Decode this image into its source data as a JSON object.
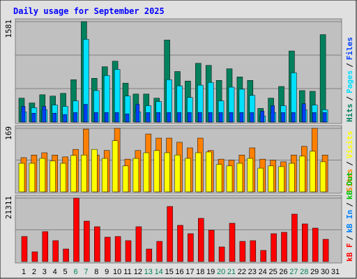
{
  "title": "Daily usage for September 2025",
  "legend_separator": "/",
  "categories": [
    "1",
    "2",
    "3",
    "4",
    "5",
    "6",
    "7",
    "8",
    "9",
    "10",
    "11",
    "12",
    "13",
    "14",
    "15",
    "16",
    "17",
    "18",
    "19",
    "20",
    "21",
    "22",
    "23",
    "24",
    "25",
    "26",
    "27",
    "28",
    "29",
    "30",
    "31"
  ],
  "category_colors": [
    "#000000",
    "#000000",
    "#000000",
    "#000000",
    "#000000",
    "#00805c",
    "#00805c",
    "#000000",
    "#000000",
    "#000000",
    "#000000",
    "#000000",
    "#00805c",
    "#00805c",
    "#000000",
    "#000000",
    "#000000",
    "#000000",
    "#000000",
    "#00805c",
    "#00805c",
    "#000000",
    "#000000",
    "#000000",
    "#000000",
    "#000000",
    "#00805c",
    "#00805c",
    "#000000",
    "#000000",
    "#000000"
  ],
  "chart_data": [
    {
      "type": "bar",
      "ylim": [
        0,
        1581
      ],
      "yticks": [
        1581
      ],
      "grid_divisions": 3,
      "series": [
        {
          "name": "Hits",
          "color": "#00805c",
          "values": [
            376,
            301,
            430,
            409,
            452,
            667,
            1581,
            689,
            871,
            958,
            613,
            441,
            441,
            376,
            1291,
            796,
            646,
            925,
            893,
            656,
            839,
            710,
            656,
            215,
            376,
            560,
            1119,
            495,
            484,
            1377,
            null
          ]
        },
        {
          "name": "Pages",
          "color": "#00e0ff",
          "values": [
            161,
            226,
            194,
            269,
            247,
            334,
            1302,
            495,
            732,
            829,
            409,
            161,
            258,
            323,
            667,
            570,
            387,
            581,
            624,
            334,
            549,
            517,
            420,
            97,
            151,
            258,
            775,
            194,
            269,
            194,
            null
          ]
        },
        {
          "name": "Files",
          "color": "#0040ff",
          "values": [
            247,
            140,
            247,
            140,
            120,
            150,
            280,
            150,
            150,
            150,
            130,
            280,
            150,
            150,
            150,
            150,
            150,
            150,
            150,
            150,
            150,
            150,
            150,
            172,
            258,
            150,
            150,
            290,
            150,
            150,
            null
          ]
        }
      ]
    },
    {
      "type": "bar",
      "ylim": [
        0,
        169
      ],
      "yticks": [
        169
      ],
      "grid_divisions": 2,
      "series": [
        {
          "name": "Sites",
          "color": "#ff8000",
          "values": [
            91,
            98,
            104,
            98,
            93,
            113,
            167,
            98,
            110,
            169,
            87,
            110,
            154,
            143,
            143,
            132,
            117,
            143,
            110,
            87,
            84,
            98,
            117,
            87,
            84,
            80,
            98,
            121,
            169,
            98,
            null
          ]
        },
        {
          "name": "Visits",
          "color": "#ffff00",
          "values": [
            76,
            76,
            89,
            82,
            76,
            97,
            98,
            113,
            89,
            136,
            69,
            89,
            104,
            110,
            104,
            98,
            89,
            104,
            106,
            73,
            69,
            76,
            89,
            63,
            69,
            67,
            76,
            95,
            108,
            80,
            null
          ]
        }
      ]
    },
    {
      "type": "bar",
      "ylim": [
        0,
        21311
      ],
      "yticks": [
        21311
      ],
      "grid_divisions": 2,
      "series": [
        {
          "name": "kB F",
          "color": "#ff0000",
          "values": [
            8430,
            3280,
            10070,
            7030,
            4220,
            21311,
            13580,
            11710,
            8200,
            8430,
            7030,
            11710,
            4220,
            6790,
            18500,
            12180,
            9370,
            14520,
            10540,
            4920,
            12880,
            6790,
            7030,
            3750,
            9370,
            9840,
            15930,
            12650,
            11240,
            7490,
            null
          ]
        },
        {
          "name": "kB In",
          "color": "#0080ff",
          "values": [
            0,
            0,
            0,
            0,
            0,
            0,
            0,
            0,
            0,
            0,
            0,
            0,
            0,
            0,
            0,
            0,
            0,
            0,
            0,
            0,
            0,
            0,
            0,
            0,
            0,
            0,
            0,
            0,
            0,
            0,
            null
          ]
        },
        {
          "name": "kB Out",
          "color": "#00c000",
          "values": [
            0,
            0,
            0,
            0,
            0,
            0,
            0,
            0,
            0,
            0,
            0,
            0,
            0,
            0,
            0,
            0,
            0,
            0,
            0,
            0,
            0,
            0,
            0,
            0,
            0,
            0,
            0,
            0,
            0,
            0,
            null
          ]
        }
      ]
    }
  ]
}
